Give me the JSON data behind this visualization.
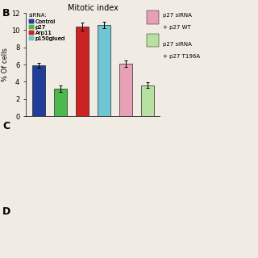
{
  "title": "Mitotic index",
  "ylabel": "% Of cells",
  "bars": [
    {
      "label": "Control",
      "value": 5.9,
      "error": 0.3,
      "color": "#1f3d99"
    },
    {
      "label": "p27",
      "value": 3.2,
      "error": 0.4,
      "color": "#4db84d"
    },
    {
      "label": "Arp11",
      "value": 10.4,
      "error": 0.5,
      "color": "#cc2222"
    },
    {
      "label": "p150glued",
      "value": 10.6,
      "error": 0.4,
      "color": "#6ec6d4"
    },
    {
      "label": "p27 siRNA + p27 WT",
      "value": 6.1,
      "error": 0.4,
      "color": "#e8a0b8"
    },
    {
      "label": "p27 siRNA + p27 T196A",
      "value": 3.6,
      "error": 0.3,
      "color": "#b8e0a0"
    }
  ],
  "legend_entries": [
    {
      "label": "Control",
      "color": "#1f3d99"
    },
    {
      "label": "p27",
      "color": "#4db84d"
    },
    {
      "label": "Arp11",
      "color": "#cc2222"
    },
    {
      "label": "p150glued",
      "color": "#6ec6d4"
    }
  ],
  "legend_entries2": [
    {
      "label": "p27 siRNA",
      "color": "#e8a0b8"
    },
    {
      "label": "+ p27 WT",
      "color": "#e8a0b8"
    },
    {
      "label": "p27 siRNA",
      "color": "#b8e0a0"
    },
    {
      "label": "+ p27 T196A",
      "color": "#b8e0a0"
    }
  ],
  "ylim": [
    0,
    12
  ],
  "yticks": [
    0,
    2,
    4,
    6,
    8,
    10,
    12
  ],
  "siRNA_label": "siRNA:",
  "background_color": "#f0ece4",
  "bar_width": 0.6,
  "title_fontsize": 7,
  "axis_fontsize": 6,
  "legend_fontsize": 5
}
